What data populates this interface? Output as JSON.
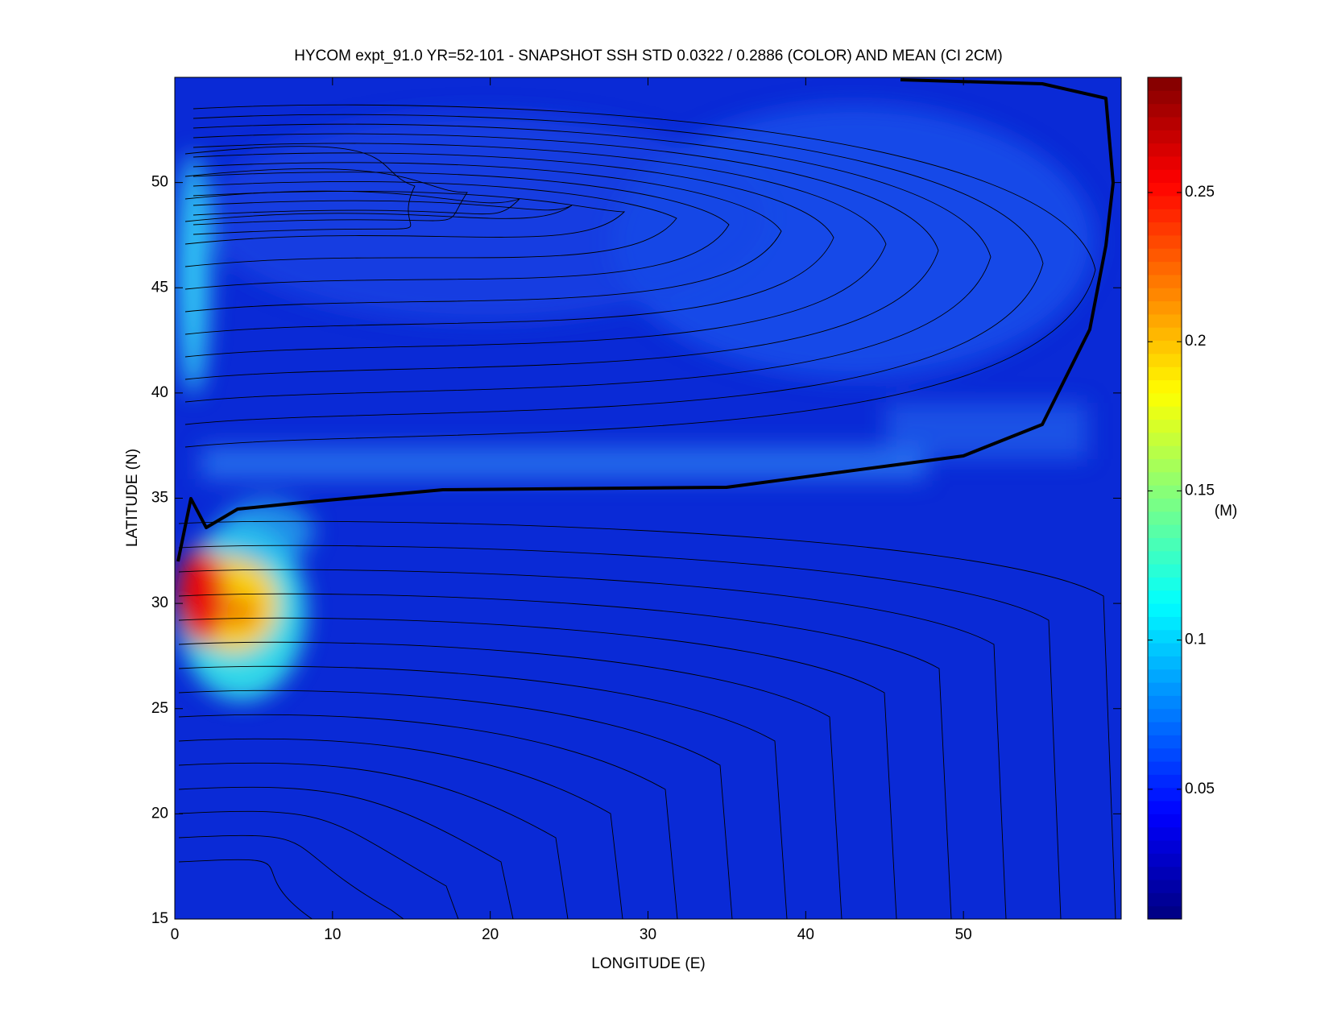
{
  "chart_data": {
    "type": "heatmap",
    "title": "HYCOM expt_91.0 YR=52-101 - SNAPSHOT SSH STD 0.0322 / 0.2886 (COLOR) AND MEAN (CI 2CM)",
    "x_label": "LONGITUDE (E)",
    "y_label": "LATITUDE (N)",
    "colorbar_label": "(M)",
    "xlim": [
      0,
      60
    ],
    "xticks": [
      0,
      10,
      20,
      30,
      40,
      50
    ],
    "ylim": [
      15,
      55
    ],
    "yticks": [
      15,
      20,
      25,
      30,
      35,
      40,
      45,
      50
    ],
    "clim": [
      0.0065,
      0.2886
    ],
    "cticks": [
      0.05,
      0.1,
      0.15,
      0.2,
      0.25
    ],
    "colormap": "jet"
  }
}
